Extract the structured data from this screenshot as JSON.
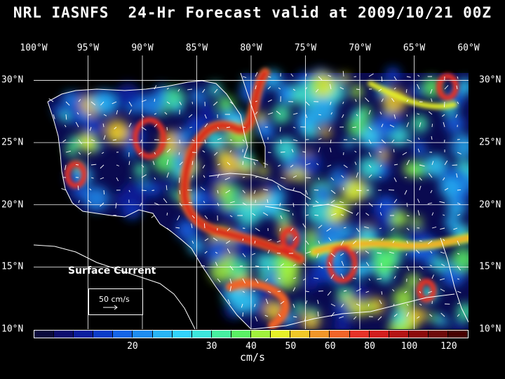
{
  "title": "NRL IASNFS  24-Hr Forecast valid at 2009/10/21 00Z",
  "lon_labels": [
    "100°W",
    "95°W",
    "90°W",
    "85°W",
    "80°W",
    "75°W",
    "70°W",
    "65°W",
    "60°W"
  ],
  "lat_labels": [
    "30°N",
    "25°N",
    "20°N",
    "15°N",
    "10°N"
  ],
  "map_extent": {
    "lon_min": -100,
    "lon_max": -60,
    "lat_min": 10,
    "lat_max": 32
  },
  "overlay": {
    "label": "Surface Current",
    "reference_vector": "50 cm/s"
  },
  "colorbar": {
    "units": "cm/s",
    "tick_labels": [
      "20",
      "30",
      "40",
      "50",
      "60",
      "80",
      "100",
      "120"
    ],
    "colors": [
      "#0a0a3c",
      "#0d0d6e",
      "#0a1e9e",
      "#0a3cc8",
      "#1464e6",
      "#1e8cf0",
      "#28b4f5",
      "#32d2fa",
      "#3ce6dc",
      "#46f0a0",
      "#5af064",
      "#a0f03c",
      "#e6f028",
      "#f0c828",
      "#f09628",
      "#f06428",
      "#e63228",
      "#d21e1e",
      "#b41414",
      "#8c0a0a",
      "#6e0a0a",
      "#460000"
    ],
    "tick_bins": [
      5,
      9,
      11,
      13,
      15,
      17,
      19,
      21
    ]
  }
}
